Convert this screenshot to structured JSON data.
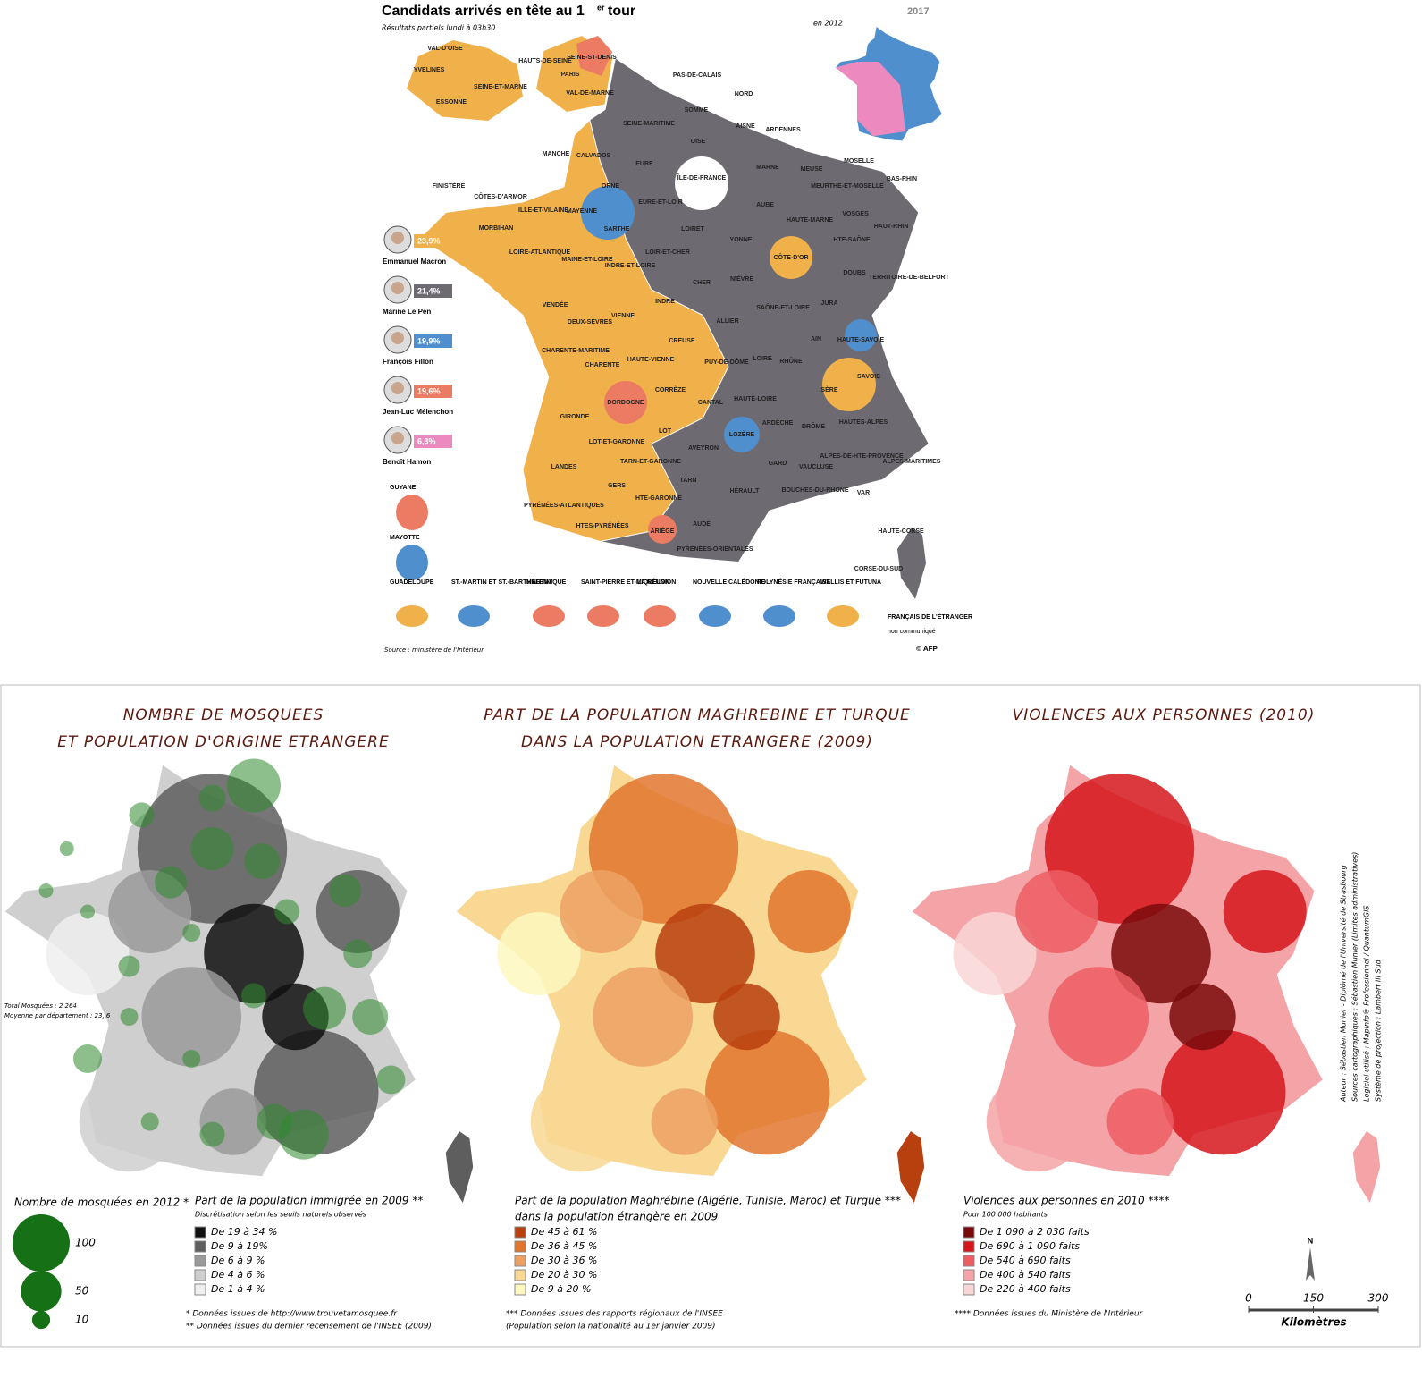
{
  "top": {
    "title": "Candidats arrivés en tête au 1",
    "title_sup": "er",
    "title_end": "tour",
    "subtitle": "Résultats partiels lundi à 03h30",
    "year_logo": "2017",
    "inset_label": "en 2012",
    "candidates": [
      {
        "name": "Emmanuel Macron",
        "score": "23,9%",
        "color": "#f0b04a"
      },
      {
        "name": "Marine Le Pen",
        "score": "21,4%",
        "color": "#6e6a72"
      },
      {
        "name": "François Fillon",
        "score": "19,9%",
        "color": "#4f8fce"
      },
      {
        "name": "Jean-Luc Mélenchon",
        "score": "19,6%",
        "color": "#ec7b63"
      },
      {
        "name": "Benoît Hamon",
        "score": "6,3%",
        "color": "#ec8ac0"
      }
    ],
    "departments": [
      "VAL-D'OISE",
      "YVELINES",
      "SEINE-ET-MARNE",
      "ESSONNE",
      "HAUTS-DE-SEINE",
      "SEINE-ST-DENIS",
      "PARIS",
      "VAL-DE-MARNE",
      "PAS-DE-CALAIS",
      "NORD",
      "SOMME",
      "SEINE-MARITIME",
      "AISNE",
      "ARDENNES",
      "OISE",
      "MANCHE",
      "CALVADOS",
      "EURE",
      "MOSELLE",
      "MARNE",
      "MEUSE",
      "BAS-RHIN",
      "FINISTÈRE",
      "CÔTES-D'ARMOR",
      "ORNE",
      "ÎLE-DE-FRANCE",
      "MEURTHE-ET-MOSELLE",
      "EURE-ET-LOIR",
      "ILLE-ET-VILAINE",
      "MAYENNE",
      "AUBE",
      "VOSGES",
      "HAUTE-MARNE",
      "HAUT-RHIN",
      "MORBIHAN",
      "SARTHE",
      "LOIRET",
      "YONNE",
      "HTE-SAÔNE",
      "LOIR-ET-CHER",
      "LOIRE-ATLANTIQUE",
      "MAINE-ET-LOIRE",
      "INDRE-ET-LOIRE",
      "CÔTE-D'OR",
      "DOUBS",
      "TERRITOIRE-DE-BELFORT",
      "CHER",
      "NIÈVRE",
      "JURA",
      "INDRE",
      "SAÔNE-ET-LOIRE",
      "VENDÉE",
      "VIENNE",
      "DEUX-SÈVRES",
      "ALLIER",
      "AIN",
      "HAUTE-SAVOIE",
      "CREUSE",
      "CHARENTE-MARITIME",
      "HAUTE-VIENNE",
      "LOIRE",
      "RHÔNE",
      "PUY-DE-DÔME",
      "CHARENTE",
      "SAVOIE",
      "ISÈRE",
      "CORRÈZE",
      "HAUTE-LOIRE",
      "CANTAL",
      "DORDOGNE",
      "GIRONDE",
      "HAUTES-ALPES",
      "ARDÈCHE",
      "DRÔME",
      "LOT",
      "LOZÈRE",
      "LOT-ET-GARONNE",
      "AVEYRON",
      "ALPES-DE-HTE-PROVENCE",
      "TARN-ET-GARONNE",
      "ALPES-MARITIMES",
      "LANDES",
      "GARD",
      "VAUCLUSE",
      "TARN",
      "GERS",
      "HÉRAULT",
      "BOUCHES-DU-RHÔNE",
      "VAR",
      "HTE-GARONNE",
      "PYRÉNÉES-ATLANTIQUES",
      "HTES-PYRÉNÉES",
      "AUDE",
      "ARIÈGE",
      "PYRÉNÉES-ORIENTALES",
      "HAUTE-CORSE",
      "CORSE-DU-SUD"
    ],
    "overseas": [
      "GUYANE",
      "MAYOTTE",
      "GUADELOUPE",
      "ST.-MARTIN ET ST.-BARTHÉLEMY",
      "MARTINIQUE",
      "SAINT-PIERRE ET-MIQUELON",
      "LA RÉUNION",
      "NOUVELLE CALÉDONIE",
      "POLYNÉSIE FRANÇAISE",
      "WALLIS ET FUTUNA",
      "FRANÇAIS DE L'ÉTRANGER",
      "non communiqué"
    ],
    "source": "Source : ministère de l'Intérieur",
    "credit": "© AFP"
  },
  "bottom": {
    "panels": [
      {
        "title": [
          "NOMBRE DE MOSQUEES",
          "ET POPULATION D'ORIGINE ETRANGERE"
        ],
        "stats": [
          "Total Mosquées : 2 264",
          "Moyenne par département : 23, 6"
        ],
        "circle_title": "Nombre de mosquées en 2012 *",
        "circles": [
          100,
          50,
          10
        ],
        "legend_title": [
          "Part de la population immigrée en 2009 **",
          "Discrétisation selon les seuils naturels observés"
        ],
        "classes": [
          {
            "label": "De 19 à 34 %",
            "color": "#111111"
          },
          {
            "label": "De 9 à 19%",
            "color": "#5e5e5e"
          },
          {
            "label": "De 6 à 9 %",
            "color": "#9a9a9a"
          },
          {
            "label": "De 4 à 6 %",
            "color": "#cfcfcf"
          },
          {
            "label": "De 1 à 4 %",
            "color": "#efefef"
          }
        ],
        "notes": [
          "*   Données issues de http://www.trouvetamosquee.fr",
          "**  Données issues du dernier recensement de l'INSEE (2009)"
        ]
      },
      {
        "title": [
          "PART DE LA POPULATION MAGHREBINE ET TURQUE",
          "DANS LA POPULATION ETRANGERE (2009)"
        ],
        "legend_title": [
          "Part de la population Maghrébine (Algérie, Tunisie, Maroc) et Turque ***",
          "dans la population étrangère en 2009"
        ],
        "classes": [
          {
            "label": "De 45 à 61 %",
            "color": "#b8400e"
          },
          {
            "label": "De 36 à 45 %",
            "color": "#e2752e"
          },
          {
            "label": "De 30 à 36 %",
            "color": "#eda264"
          },
          {
            "label": "De 20 à 30 %",
            "color": "#f8d893"
          },
          {
            "label": "De 9 à 20 %",
            "color": "#fdf8bf"
          }
        ],
        "notes": [
          "*** Données issues des rapports régionaux de l'INSEE",
          "(Population selon la nationalité au 1er janvier 2009)"
        ]
      },
      {
        "title": [
          "VIOLENCES AUX PERSONNES (2010)"
        ],
        "legend_title": [
          "Violences aux personnes en 2010 ****",
          "Pour 100 000 habitants"
        ],
        "classes": [
          {
            "label": "De 1 090 à 2 030 faits",
            "color": "#7a0a0a"
          },
          {
            "label": "De 690 à 1 090 faits",
            "color": "#d5161c"
          },
          {
            "label": "De 540 à 690 faits",
            "color": "#ec5e63"
          },
          {
            "label": "De 400 à 540 faits",
            "color": "#f4a3a6"
          },
          {
            "label": "De 220 à 400 faits",
            "color": "#f9d6d6"
          }
        ],
        "notes": [
          "**** Données issues du Ministère de l'Intérieur"
        ]
      }
    ],
    "north": "N",
    "scale": [
      0,
      150,
      300
    ],
    "scale_unit": "Kilomètres",
    "credits": [
      "Auteur : Sébastien Munier - Diplômé de l'Université de Strasbourg",
      "Sources cartographiques : Sébastien Munier (Limites administratives)",
      "Logiciel utilisé : MapInfo® Professionnel / QuantumGIS",
      "Système de projection : Lambert III Sud"
    ]
  }
}
